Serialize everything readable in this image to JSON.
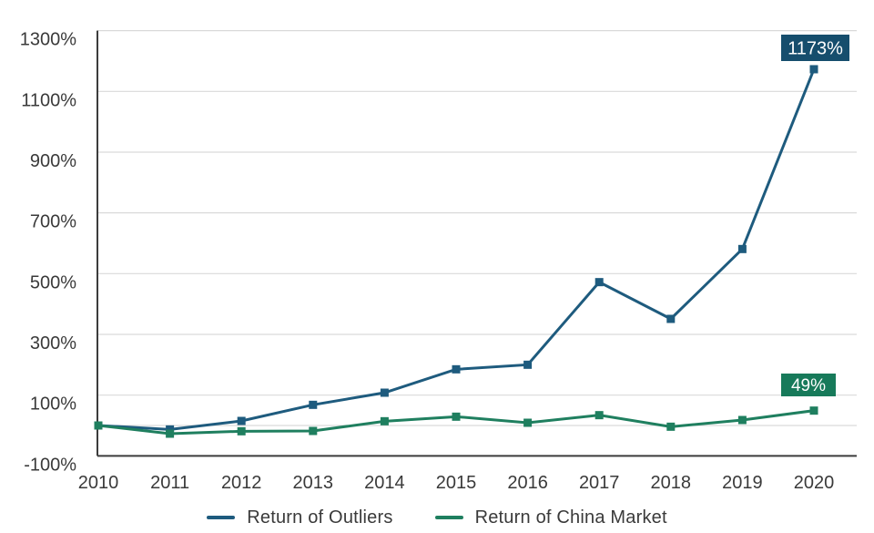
{
  "chart_data": {
    "type": "line",
    "title": "",
    "x_categories": [
      "2010",
      "2011",
      "2012",
      "2013",
      "2014",
      "2015",
      "2016",
      "2017",
      "2018",
      "2019",
      "2020"
    ],
    "series": [
      {
        "name": "Return of Outliers",
        "color": "#1e5b7e",
        "values": [
          0,
          -13,
          15,
          68,
          108,
          185,
          200,
          472,
          351,
          581,
          1173
        ],
        "end_label": {
          "text": "1173%",
          "bg": "#164e6d",
          "text_color": "#ffffff"
        }
      },
      {
        "name": "Return of China Market",
        "color": "#1f7f5f",
        "values": [
          0,
          -27,
          -19,
          -18,
          14,
          29,
          9,
          34,
          -4,
          18,
          49
        ],
        "end_label": {
          "text": "49%",
          "bg": "#177a5a",
          "text_color": "#ffffff"
        }
      }
    ],
    "y_axis": {
      "tick_labels": [
        "1300%",
        "1100%",
        "900%",
        "700%",
        "500%",
        "300%",
        "100%",
        "-100%"
      ],
      "tick_values": [
        1300,
        1100,
        900,
        700,
        500,
        300,
        100,
        -100
      ],
      "min": -100,
      "max": 1300,
      "zero_line": true
    },
    "x_axis": {
      "tick_labels": [
        "2010",
        "2011",
        "2012",
        "2013",
        "2014",
        "2015",
        "2016",
        "2017",
        "2018",
        "2019",
        "2020"
      ]
    },
    "grid": true,
    "legend_position": "bottom",
    "legend": [
      "Return of Outliers",
      "Return of China Market"
    ]
  },
  "colors": {
    "gridline": "#d9d9d9",
    "axis_line": "#3c3c3c",
    "tick_text": "#3a3a3a",
    "background": "#ffffff"
  }
}
